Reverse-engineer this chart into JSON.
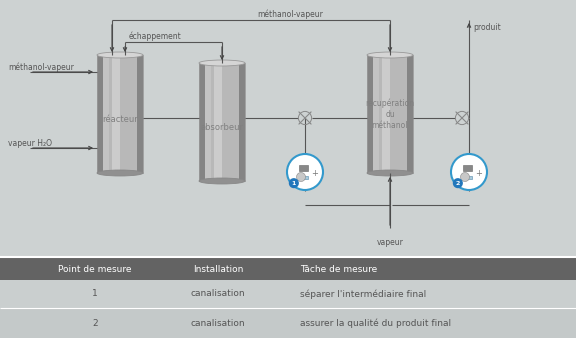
{
  "bg_color": "#cdd2d2",
  "table_header_color": "#636363",
  "pipe_color": "#555555",
  "text_color": "#555555",
  "cylinder_dark": "#909090",
  "cylinder_mid": "#b0b0b0",
  "cylinder_light": "#d8d8d8",
  "sensor_border_color": "#3399cc",
  "sensor_badge_color": "#2277bb",
  "table_headers": [
    "Point de mesure",
    "Installation",
    "Tâche de mesure"
  ],
  "table_row1": [
    "1",
    "canalisation",
    "séparer l'intermédiaire final"
  ],
  "table_row2": [
    "2",
    "canalisation",
    "assurer la qualité du produit final"
  ],
  "reacteur_label": "réacteur",
  "absorbeur_label": "absorbeur",
  "recuperation_label": "récupération\ndu\nméthanol",
  "methanol_vapeur_top": "méthanol-vapeur",
  "methanol_vapeur_left": "méthanol-vapeur",
  "echappement": "échappement",
  "vapeur_h2o": "vapeur H₂O",
  "vapeur": "vapeur",
  "produit": "produit"
}
